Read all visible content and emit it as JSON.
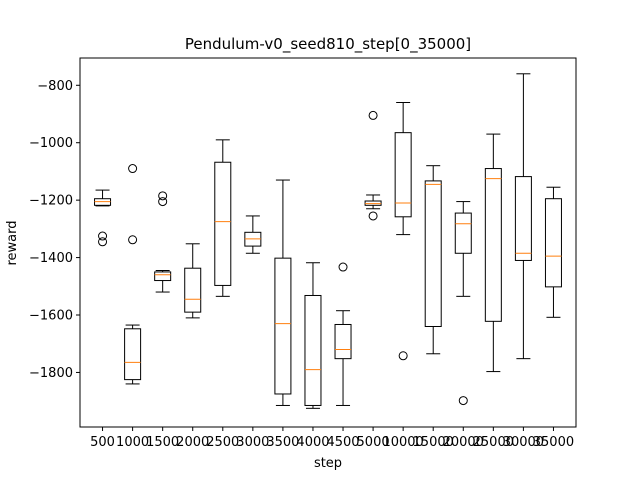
{
  "chart_data": {
    "type": "box",
    "title": "Pendulum-v0_seed810_step[0_35000]",
    "xlabel": "step",
    "ylabel": "reward",
    "ylim": [
      -1990,
      -705
    ],
    "yticks": [
      -800,
      -1000,
      -1200,
      -1400,
      -1600,
      -1800
    ],
    "ytick_labels": [
      "−800",
      "−1000",
      "−1200",
      "−1400",
      "−1600",
      "−1800"
    ],
    "box_color": "#000000",
    "median_color": "#ff7f0e",
    "grid": false,
    "categories": [
      "500",
      "1000",
      "1500",
      "2000",
      "2500",
      "3000",
      "3500",
      "4000",
      "4500",
      "5000",
      "10000",
      "15000",
      "20000",
      "25000",
      "30000",
      "35000"
    ],
    "boxes": [
      {
        "label": "500",
        "whislo": -1220,
        "q1": -1218,
        "med": -1205,
        "q3": -1195,
        "whishi": -1165,
        "fliers": [
          -1325,
          -1345
        ]
      },
      {
        "label": "1000",
        "whislo": -1840,
        "q1": -1825,
        "med": -1765,
        "q3": -1648,
        "whishi": -1635,
        "fliers": [
          -1090,
          -1338
        ]
      },
      {
        "label": "1500",
        "whislo": -1520,
        "q1": -1480,
        "med": -1460,
        "q3": -1450,
        "whishi": -1445,
        "fliers": [
          -1185,
          -1205
        ]
      },
      {
        "label": "2000",
        "whislo": -1610,
        "q1": -1590,
        "med": -1545,
        "q3": -1437,
        "whishi": -1352,
        "fliers": []
      },
      {
        "label": "2500",
        "whislo": -1535,
        "q1": -1497,
        "med": -1275,
        "q3": -1068,
        "whishi": -990,
        "fliers": []
      },
      {
        "label": "3000",
        "whislo": -1385,
        "q1": -1360,
        "med": -1335,
        "q3": -1312,
        "whishi": -1255,
        "fliers": []
      },
      {
        "label": "3500",
        "whislo": -1915,
        "q1": -1875,
        "med": -1630,
        "q3": -1402,
        "whishi": -1130,
        "fliers": []
      },
      {
        "label": "4000",
        "whislo": -1925,
        "q1": -1915,
        "med": -1790,
        "q3": -1532,
        "whishi": -1418,
        "fliers": []
      },
      {
        "label": "4500",
        "whislo": -1915,
        "q1": -1752,
        "med": -1720,
        "q3": -1633,
        "whishi": -1585,
        "fliers": [
          -1433
        ]
      },
      {
        "label": "5000",
        "whislo": -1230,
        "q1": -1218,
        "med": -1212,
        "q3": -1203,
        "whishi": -1182,
        "fliers": [
          -905,
          -1255
        ]
      },
      {
        "label": "10000",
        "whislo": -1320,
        "q1": -1258,
        "med": -1210,
        "q3": -965,
        "whishi": -860,
        "fliers": [
          -1742
        ]
      },
      {
        "label": "15000",
        "whislo": -1735,
        "q1": -1640,
        "med": -1145,
        "q3": -1133,
        "whishi": -1080,
        "fliers": []
      },
      {
        "label": "20000",
        "whislo": -1535,
        "q1": -1385,
        "med": -1282,
        "q3": -1245,
        "whishi": -1205,
        "fliers": [
          -1898
        ]
      },
      {
        "label": "25000",
        "whislo": -1797,
        "q1": -1622,
        "med": -1125,
        "q3": -1090,
        "whishi": -970,
        "fliers": []
      },
      {
        "label": "30000",
        "whislo": -1752,
        "q1": -1410,
        "med": -1385,
        "q3": -1118,
        "whishi": -760,
        "fliers": []
      },
      {
        "label": "35000",
        "whislo": -1608,
        "q1": -1502,
        "med": -1395,
        "q3": -1195,
        "whishi": -1155,
        "fliers": []
      }
    ]
  }
}
